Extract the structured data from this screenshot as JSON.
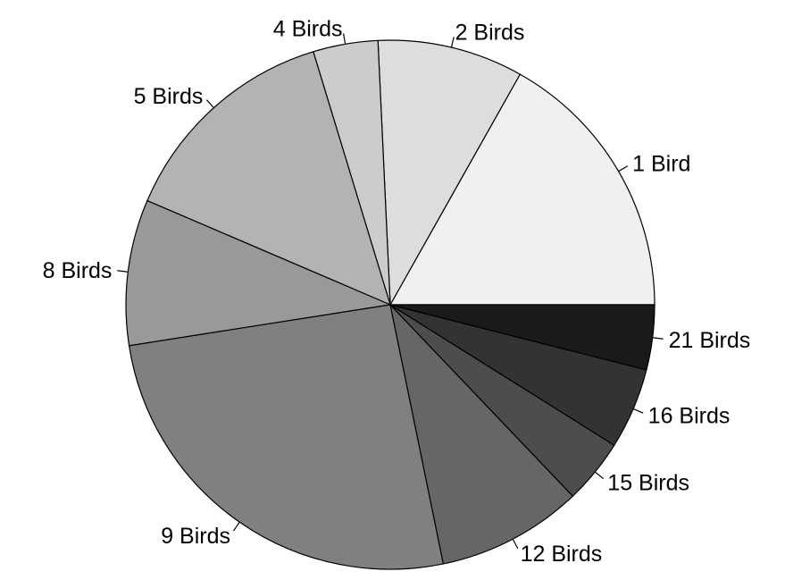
{
  "chart_data": {
    "type": "pie",
    "title": "",
    "start_angle_deg": 0,
    "direction": "counterclockwise",
    "border_color": "#000000",
    "slices": [
      {
        "label": "1 Bird",
        "value": 17,
        "color": "#f0f0f0"
      },
      {
        "label": "2 Birds",
        "value": 9,
        "color": "#dddddd"
      },
      {
        "label": "4 Birds",
        "value": 4,
        "color": "#cccccc"
      },
      {
        "label": "5 Birds",
        "value": 14,
        "color": "#b3b3b3"
      },
      {
        "label": "8 Birds",
        "value": 9,
        "color": "#999999"
      },
      {
        "label": "9 Birds",
        "value": 26,
        "color": "#808080"
      },
      {
        "label": "12 Birds",
        "value": 9,
        "color": "#666666"
      },
      {
        "label": "15 Birds",
        "value": 4,
        "color": "#4d4d4d"
      },
      {
        "label": "16 Birds",
        "value": 5,
        "color": "#333333"
      },
      {
        "label": "21 Birds",
        "value": 4,
        "color": "#1a1a1a"
      }
    ]
  }
}
